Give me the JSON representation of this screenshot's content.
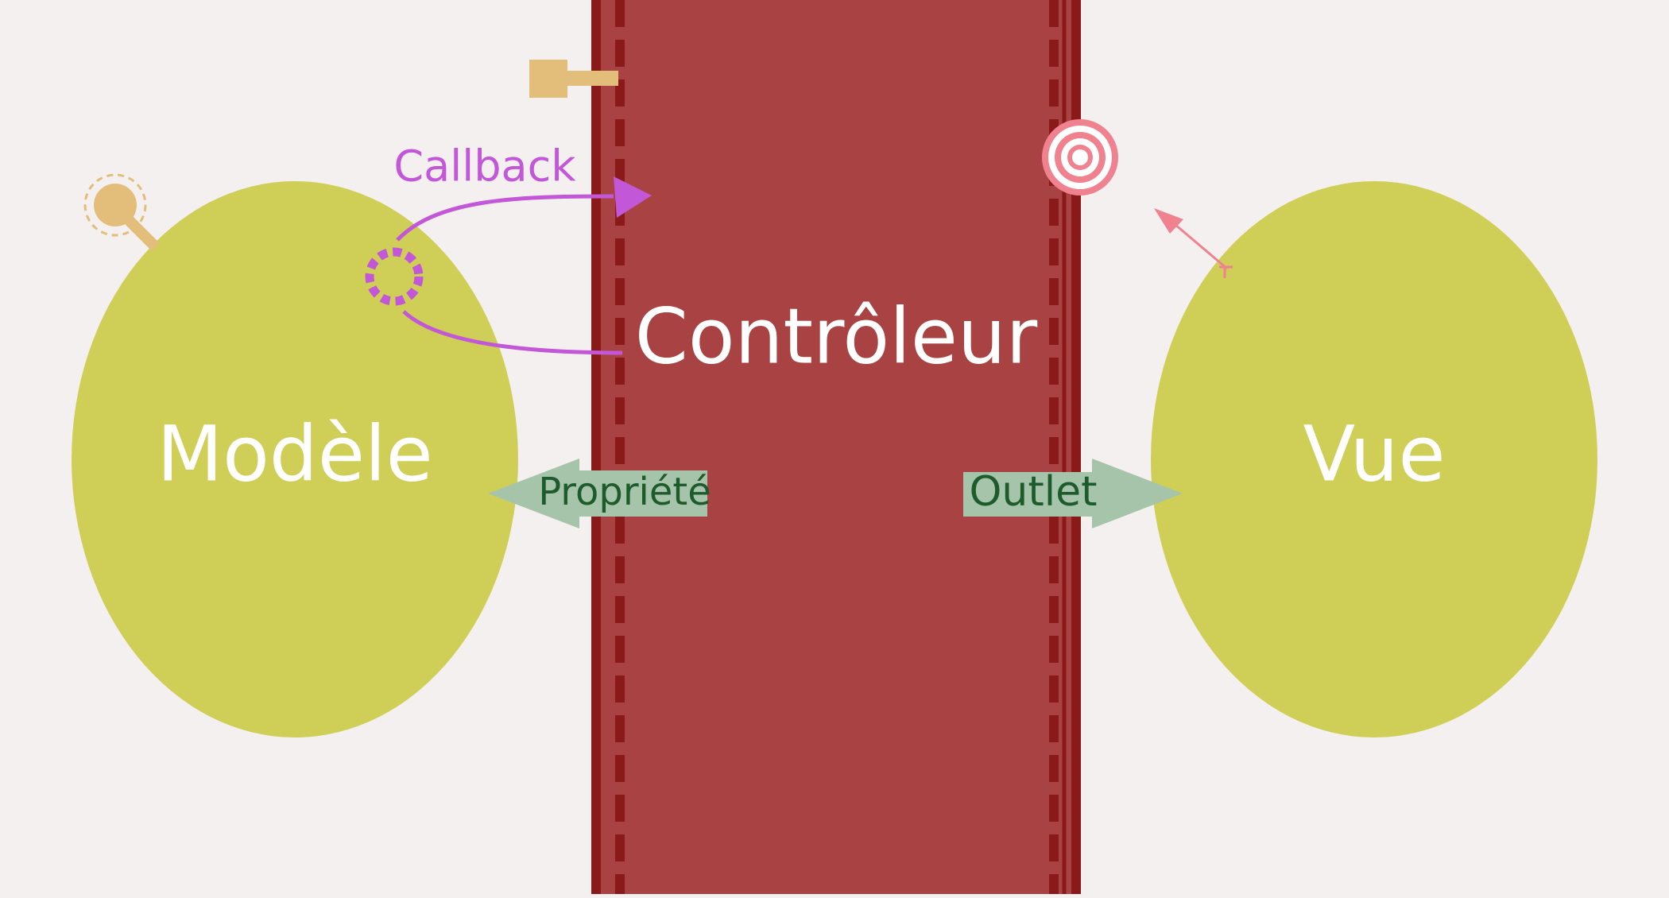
{
  "diagram": {
    "model": {
      "label": "Modèle"
    },
    "controller": {
      "label": "Contrôleur"
    },
    "view": {
      "label": "Vue"
    },
    "callback": {
      "label": "Callback"
    },
    "property": {
      "label": "Propriété"
    },
    "outlet": {
      "label": "Outlet"
    }
  },
  "colors": {
    "background": "#f4f0ef",
    "ellipse": "#cfcf58",
    "controller_fill": "#a94242",
    "controller_border": "#8a1a1a",
    "arrow_fill": "#a6c4aa",
    "arrow_text": "#1e5b2c",
    "callback": "#c257d8",
    "plug": "#e3bd7a",
    "target": "#f08290"
  },
  "icons": {
    "plug": "plug-icon",
    "target": "target-icon",
    "hook": "hook-icon",
    "dashed-circle": "dashed-circle-icon",
    "small-arrow": "arrow-icon"
  }
}
